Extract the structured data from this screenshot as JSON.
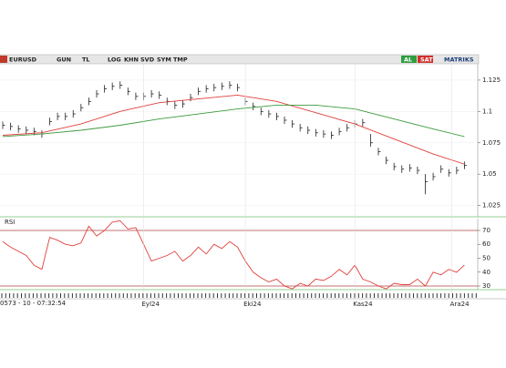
{
  "toolbar": {
    "symbol": "EURUSD",
    "buttons": [
      "GUN",
      "TL",
      "LOG",
      "KHN",
      "SVD",
      "SYM",
      "TMP"
    ],
    "actions": [
      "AL",
      "SAT"
    ],
    "brand": "MATRIKS"
  },
  "status": "0573 - 10 - 07:32:54",
  "chart_data": [
    {
      "type": "ohlc",
      "xlim": [
        -0.35,
        60.7
      ],
      "ylim": [
        1.016,
        1.138
      ],
      "yticks": [
        1.125,
        1.1,
        1.075,
        1.05,
        1.025
      ],
      "grid": true,
      "color": "#222222",
      "x": [
        0,
        1,
        2,
        3,
        4,
        5,
        6,
        7,
        8,
        9,
        10,
        11,
        12,
        13,
        14,
        15,
        16,
        17,
        18,
        19,
        20,
        21,
        22,
        23,
        24,
        25,
        26,
        27,
        28,
        29,
        30,
        31,
        32,
        33,
        34,
        35,
        36,
        37,
        38,
        39,
        40,
        41,
        42,
        43,
        44,
        45,
        46,
        47,
        48,
        49,
        50,
        51,
        52,
        53,
        54,
        55,
        56,
        57,
        58,
        59
      ],
      "high": [
        1.092,
        1.091,
        1.089,
        1.088,
        1.087,
        1.085,
        1.095,
        1.099,
        1.099,
        1.101,
        1.106,
        1.111,
        1.117,
        1.121,
        1.123,
        1.124,
        1.119,
        1.115,
        1.115,
        1.117,
        1.116,
        1.111,
        1.108,
        1.109,
        1.114,
        1.119,
        1.121,
        1.122,
        1.123,
        1.124,
        1.122,
        1.111,
        1.107,
        1.103,
        1.101,
        1.099,
        1.096,
        1.093,
        1.09,
        1.088,
        1.086,
        1.085,
        1.084,
        1.087,
        1.09,
        1.093,
        1.094,
        1.082,
        1.071,
        1.064,
        1.059,
        1.057,
        1.058,
        1.056,
        1.05,
        1.051,
        1.057,
        1.054,
        1.056,
        1.06
      ],
      "low": [
        1.086,
        1.085,
        1.083,
        1.082,
        1.081,
        1.079,
        1.089,
        1.093,
        1.093,
        1.095,
        1.1,
        1.105,
        1.111,
        1.115,
        1.117,
        1.118,
        1.113,
        1.109,
        1.109,
        1.111,
        1.11,
        1.105,
        1.102,
        1.103,
        1.108,
        1.113,
        1.115,
        1.116,
        1.117,
        1.118,
        1.116,
        1.105,
        1.101,
        1.097,
        1.095,
        1.093,
        1.09,
        1.087,
        1.084,
        1.082,
        1.08,
        1.079,
        1.078,
        1.081,
        1.084,
        1.087,
        1.088,
        1.072,
        1.065,
        1.058,
        1.053,
        1.051,
        1.052,
        1.05,
        1.034,
        1.045,
        1.051,
        1.048,
        1.05,
        1.054
      ],
      "close": [
        1.089,
        1.088,
        1.086,
        1.085,
        1.084,
        1.082,
        1.092,
        1.096,
        1.096,
        1.098,
        1.103,
        1.108,
        1.114,
        1.118,
        1.12,
        1.121,
        1.116,
        1.112,
        1.112,
        1.114,
        1.113,
        1.108,
        1.105,
        1.106,
        1.111,
        1.116,
        1.118,
        1.119,
        1.12,
        1.121,
        1.119,
        1.108,
        1.104,
        1.1,
        1.098,
        1.096,
        1.093,
        1.09,
        1.087,
        1.085,
        1.083,
        1.082,
        1.081,
        1.084,
        1.087,
        1.09,
        1.091,
        1.075,
        1.068,
        1.061,
        1.056,
        1.054,
        1.055,
        1.053,
        1.044,
        1.048,
        1.054,
        1.051,
        1.053,
        1.057
      ],
      "series": [
        {
          "color": "#e0403c",
          "x": [
            0,
            5,
            10,
            15,
            20,
            25,
            30,
            35,
            40,
            45,
            50,
            55,
            59
          ],
          "values": [
            1.081,
            1.083,
            1.09,
            1.1,
            1.107,
            1.11,
            1.113,
            1.108,
            1.099,
            1.09,
            1.078,
            1.066,
            1.058
          ]
        },
        {
          "color": "#3c9a3c",
          "x": [
            0,
            5,
            10,
            15,
            20,
            25,
            30,
            35,
            40,
            45,
            50,
            55,
            59
          ],
          "values": [
            1.08,
            1.082,
            1.085,
            1.089,
            1.094,
            1.098,
            1.102,
            1.105,
            1.105,
            1.102,
            1.094,
            1.086,
            1.08
          ]
        }
      ]
    },
    {
      "type": "line",
      "title": "RSI",
      "xlim": [
        -0.35,
        60.7
      ],
      "ylim": [
        27.4,
        78.5
      ],
      "yticks": [
        70,
        60,
        50,
        40,
        30
      ],
      "levels": [
        70,
        30
      ],
      "xticks": [
        {
          "value": 18,
          "label": "Eyl24"
        },
        {
          "value": 31,
          "label": "Eki24"
        },
        {
          "value": 45,
          "label": "Kas24"
        },
        {
          "value": 57.4,
          "label": "Ara24"
        }
      ],
      "series": [
        {
          "color": "#e0403c",
          "x": [
            0,
            1,
            2,
            3,
            4,
            5,
            6,
            7,
            8,
            9,
            10,
            11,
            12,
            13,
            14,
            15,
            16,
            17,
            18,
            19,
            20,
            21,
            22,
            23,
            24,
            25,
            26,
            27,
            28,
            29,
            30,
            31,
            32,
            33,
            34,
            35,
            36,
            37,
            38,
            39,
            40,
            41,
            42,
            43,
            44,
            45,
            46,
            47,
            48,
            49,
            50,
            51,
            52,
            53,
            54,
            55,
            56,
            57,
            58,
            59
          ],
          "values": [
            62,
            58,
            55,
            52,
            45,
            42,
            65,
            63,
            60,
            59,
            61,
            73,
            66,
            70,
            76,
            77,
            71,
            72,
            60,
            48,
            50,
            52,
            55,
            48,
            52,
            58,
            53,
            60,
            57,
            62,
            58,
            48,
            40,
            36,
            33,
            35,
            30,
            28,
            32,
            30,
            35,
            34,
            37,
            42,
            38,
            45,
            35,
            33,
            30,
            28,
            32,
            31,
            31,
            35,
            30,
            40,
            38,
            42,
            40,
            45
          ]
        }
      ]
    }
  ]
}
